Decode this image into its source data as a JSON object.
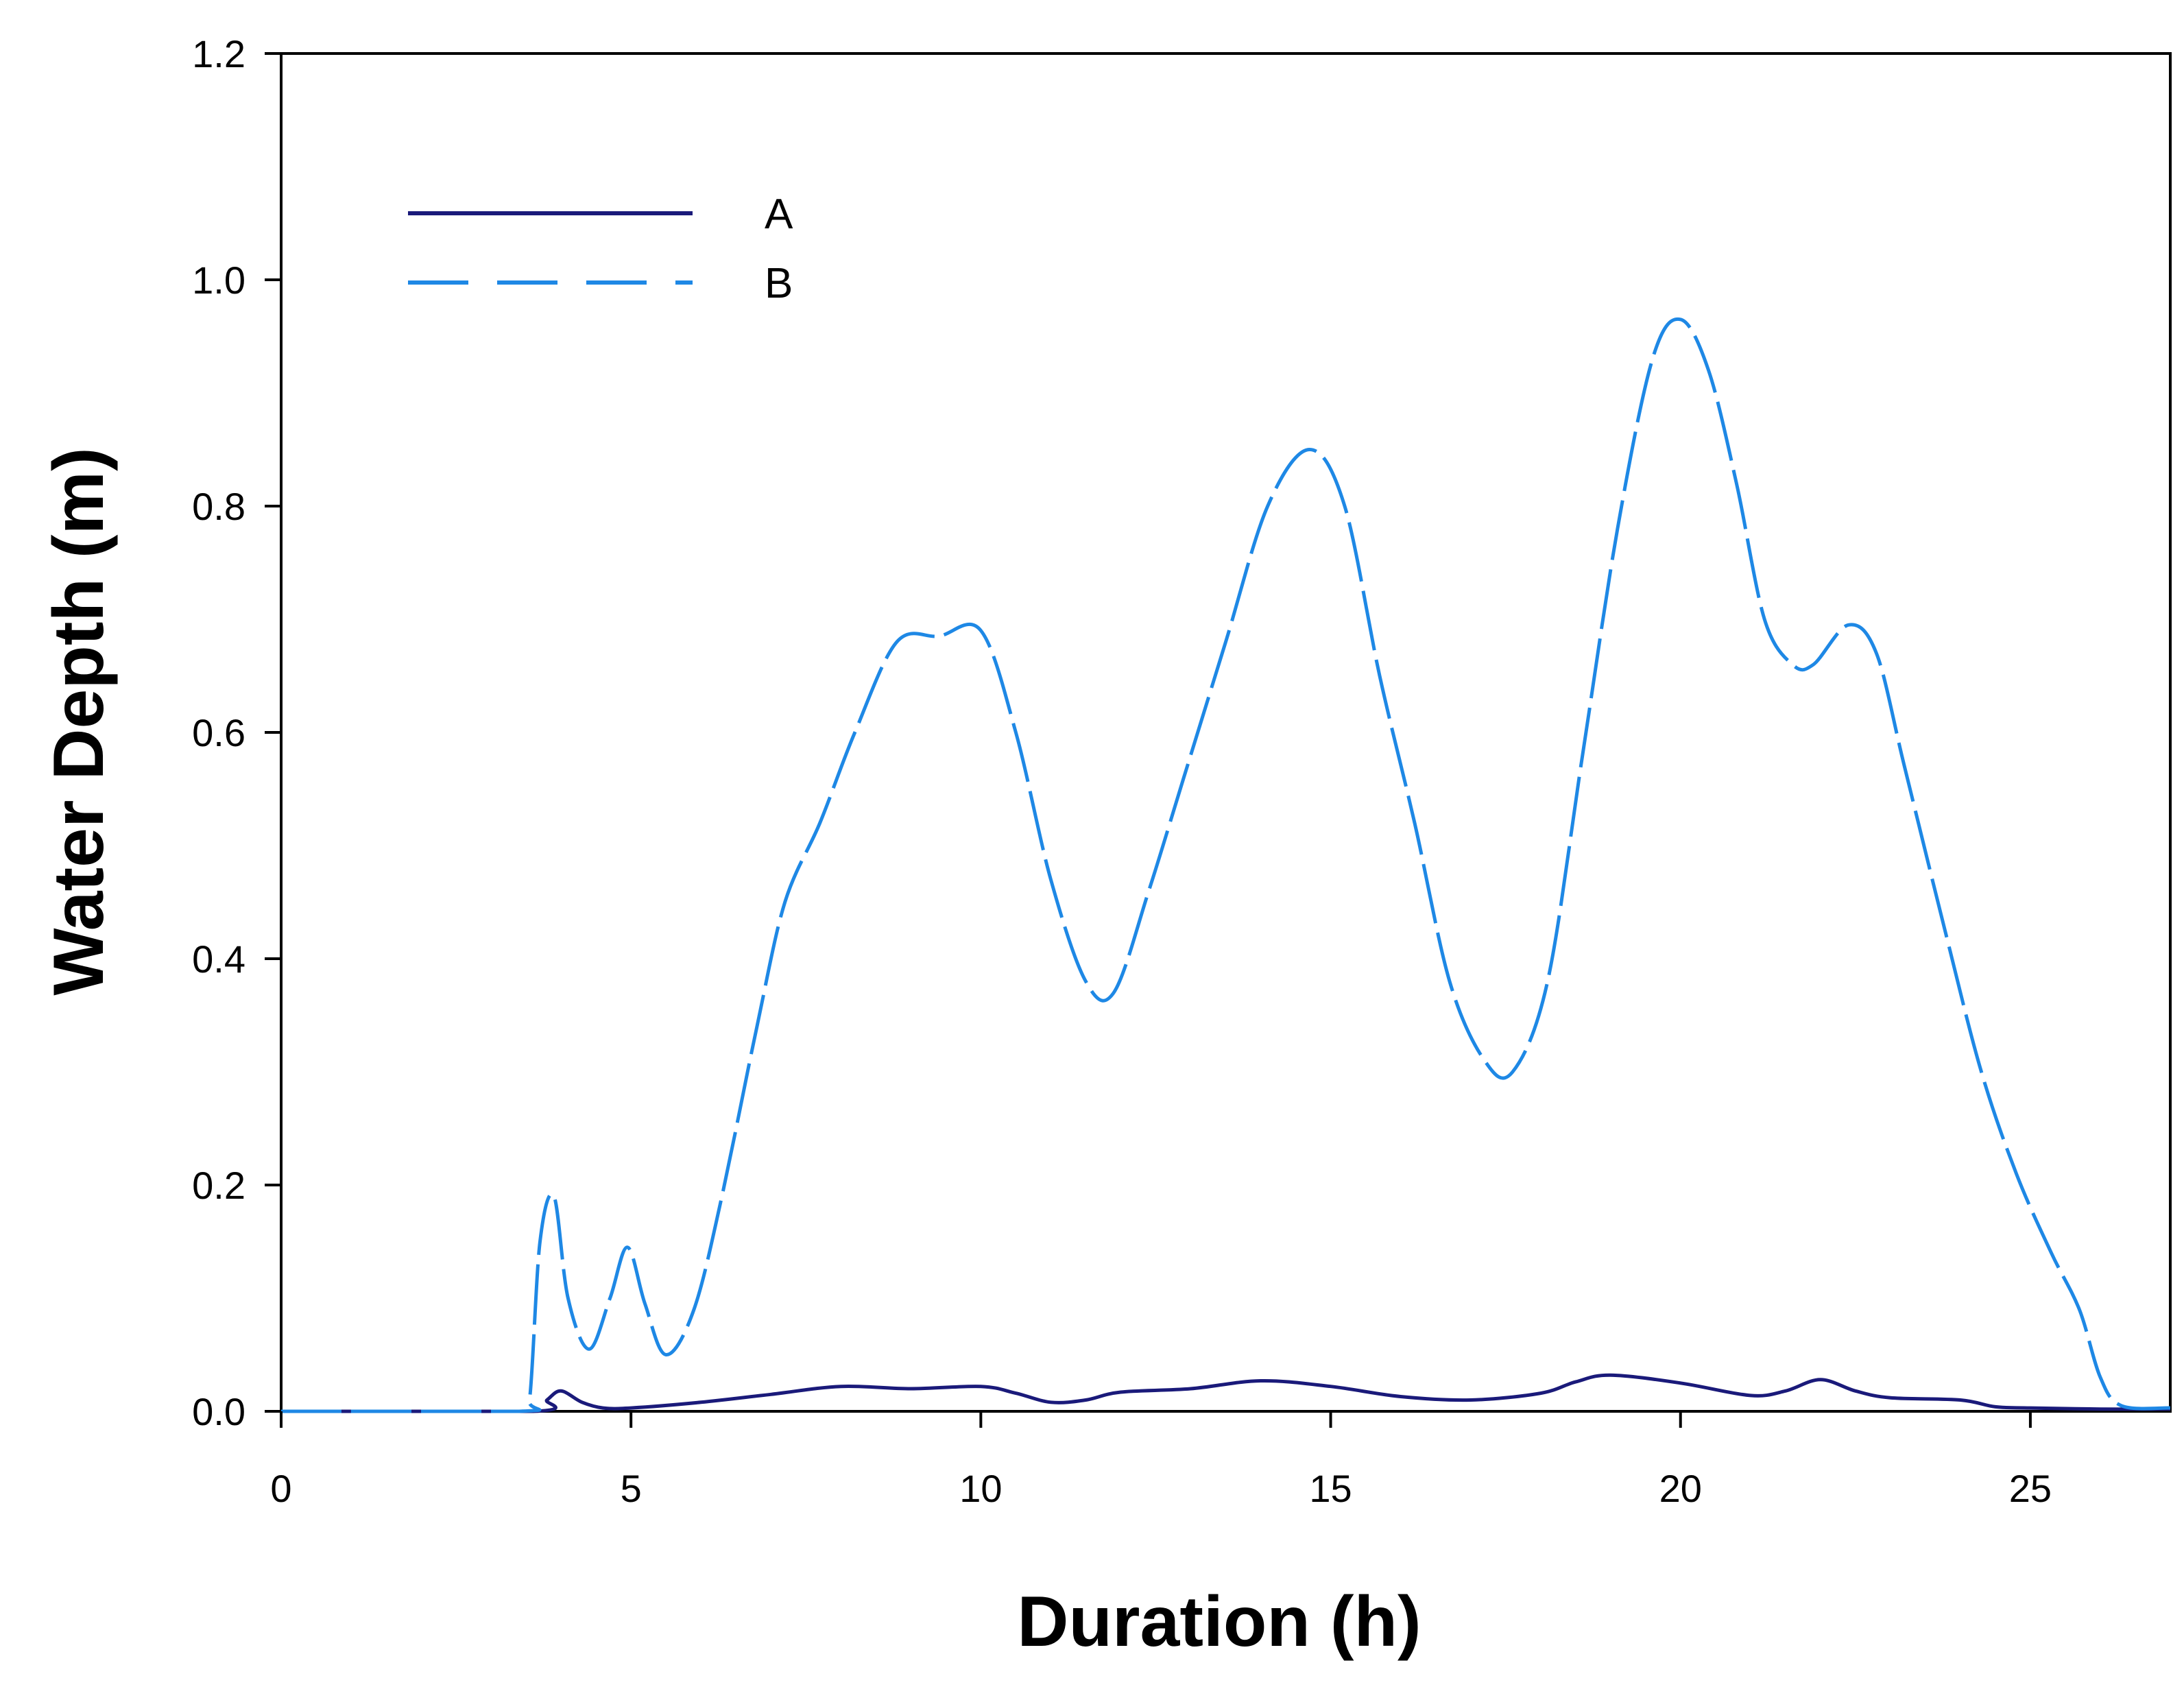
{
  "colors": {
    "background": "#ffffff",
    "axis": "#000000",
    "series_a": "#1a1a7a",
    "series_b": "#1e88e5"
  },
  "chart_data": {
    "type": "line",
    "title": "",
    "xlabel": "Duration (h)",
    "ylabel": "Water Depth (m)",
    "xlim": [
      0,
      27
    ],
    "ylim": [
      0,
      1.2
    ],
    "xticks": [
      0,
      5,
      10,
      15,
      20,
      25
    ],
    "xtick_labels": [
      "0",
      "5",
      "10",
      "15",
      "20",
      "25"
    ],
    "yticks": [
      0.0,
      0.2,
      0.4,
      0.6,
      0.8,
      1.0,
      1.2
    ],
    "ytick_labels": [
      "0.0",
      "0.2",
      "0.4",
      "0.6",
      "0.8",
      "1.0",
      "1.2"
    ],
    "grid": false,
    "legend_position": "top-left",
    "series": [
      {
        "name": "A",
        "style": "solid",
        "color": "#1a1a7a",
        "x": [
          0,
          3.6,
          3.8,
          4.0,
          4.3,
          4.6,
          5.0,
          6.0,
          7.0,
          8.0,
          9.0,
          10.0,
          10.5,
          11.0,
          11.5,
          12.0,
          13.0,
          14.0,
          15.0,
          16.0,
          17.0,
          18.0,
          18.5,
          19.0,
          20.0,
          21.0,
          21.5,
          22.0,
          22.5,
          23.0,
          24.0,
          24.5,
          25.0,
          26.0,
          27.0
        ],
        "y": [
          0,
          0,
          0.01,
          0.018,
          0.008,
          0.003,
          0.003,
          0.008,
          0.015,
          0.022,
          0.02,
          0.022,
          0.016,
          0.008,
          0.01,
          0.017,
          0.02,
          0.027,
          0.022,
          0.013,
          0.01,
          0.016,
          0.026,
          0.032,
          0.025,
          0.014,
          0.018,
          0.028,
          0.018,
          0.012,
          0.01,
          0.004,
          0.003,
          0.002,
          0.002
        ]
      },
      {
        "name": "B",
        "style": "dashed",
        "color": "#1e88e5",
        "x": [
          0,
          3.4,
          3.55,
          3.7,
          3.9,
          4.1,
          4.4,
          4.7,
          4.95,
          5.2,
          5.5,
          5.9,
          6.3,
          6.8,
          7.2,
          7.7,
          8.2,
          8.8,
          9.4,
          10.0,
          10.5,
          11.0,
          11.5,
          11.9,
          12.4,
          12.9,
          13.5,
          14.1,
          14.7,
          15.2,
          15.7,
          16.2,
          16.7,
          17.2,
          17.6,
          18.1,
          18.6,
          19.1,
          19.6,
          20.0,
          20.4,
          20.8,
          21.2,
          21.6,
          21.9,
          22.4,
          22.8,
          23.2,
          23.8,
          24.3,
          24.8,
          25.3,
          25.7,
          26.0,
          26.3,
          27.0
        ],
        "y": [
          0,
          0,
          0.01,
          0.15,
          0.19,
          0.1,
          0.055,
          0.1,
          0.145,
          0.095,
          0.05,
          0.09,
          0.19,
          0.34,
          0.45,
          0.52,
          0.6,
          0.68,
          0.685,
          0.69,
          0.6,
          0.47,
          0.38,
          0.37,
          0.46,
          0.56,
          0.68,
          0.8,
          0.85,
          0.8,
          0.65,
          0.52,
          0.38,
          0.31,
          0.3,
          0.38,
          0.58,
          0.78,
          0.93,
          0.965,
          0.92,
          0.82,
          0.7,
          0.66,
          0.66,
          0.695,
          0.67,
          0.57,
          0.42,
          0.3,
          0.21,
          0.14,
          0.09,
          0.03,
          0.005,
          0.003
        ]
      }
    ]
  }
}
